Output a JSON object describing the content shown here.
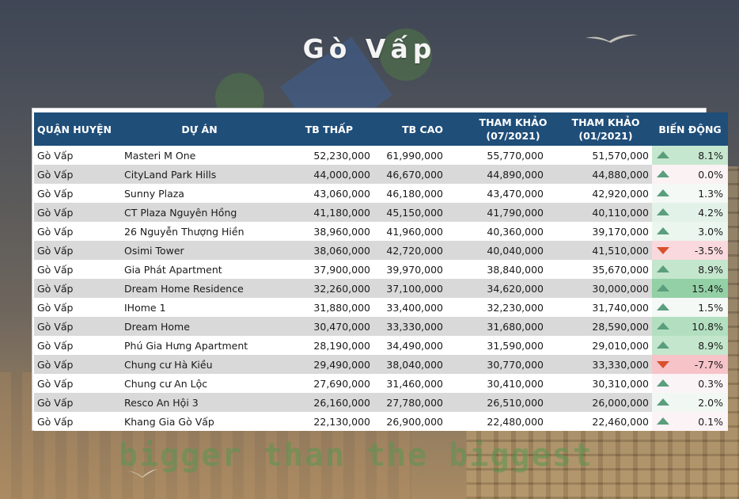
{
  "title": "Gò Vấp",
  "slogan": "bigger than the biggest",
  "watermark": "bigge",
  "colors": {
    "header_bg": "#1f4e79",
    "header_text": "#ffffff",
    "row_alt": "#d9d9d9",
    "up_arrow": "#5a9e7d",
    "down_arrow": "#d9502e"
  },
  "table": {
    "headers": {
      "district": "QUẬN HUYỆN",
      "project": "DỰ ÁN",
      "tb_low": "TB THẤP",
      "tb_high": "TB CAO",
      "ref_07_line1": "THAM KHẢO",
      "ref_07_line2": "(07/2021)",
      "ref_01_line1": "THAM KHẢO",
      "ref_01_line2": "(01/2021)",
      "change": "BIẾN ĐỘNG"
    },
    "rows": [
      {
        "district": "Gò Vấp",
        "project": "Masteri M One",
        "tb_low": "52,230,000",
        "tb_high": "61,990,000",
        "ref_07": "55,770,000",
        "ref_01": "51,570,000",
        "direction": "up",
        "change": "8.1%",
        "change_bg": "#c6e7cf"
      },
      {
        "district": "Gò Vấp",
        "project": "CityLand Park Hills",
        "tb_low": "44,000,000",
        "tb_high": "46,670,000",
        "ref_07": "44,890,000",
        "ref_01": "44,880,000",
        "direction": "up",
        "change": "0.0%",
        "change_bg": "#fbf2f4"
      },
      {
        "district": "Gò Vấp",
        "project": "Sunny Plaza",
        "tb_low": "43,060,000",
        "tb_high": "46,180,000",
        "ref_07": "43,470,000",
        "ref_01": "42,920,000",
        "direction": "up",
        "change": "1.3%",
        "change_bg": "#f4f9f6"
      },
      {
        "district": "Gò Vấp",
        "project": "CT Plaza Nguyên Hồng",
        "tb_low": "41,180,000",
        "tb_high": "45,150,000",
        "ref_07": "41,790,000",
        "ref_01": "40,110,000",
        "direction": "up",
        "change": "4.2%",
        "change_bg": "#e3f2e8"
      },
      {
        "district": "Gò Vấp",
        "project": "26 Nguyễn Thượng Hiền",
        "tb_low": "38,960,000",
        "tb_high": "41,960,000",
        "ref_07": "40,360,000",
        "ref_01": "39,170,000",
        "direction": "up",
        "change": "3.0%",
        "change_bg": "#ebf6ee"
      },
      {
        "district": "Gò Vấp",
        "project": "Osimi Tower",
        "tb_low": "38,060,000",
        "tb_high": "42,720,000",
        "ref_07": "40,040,000",
        "ref_01": "41,510,000",
        "direction": "down",
        "change": "-3.5%",
        "change_bg": "#f9d9dd"
      },
      {
        "district": "Gò Vấp",
        "project": "Gia Phát Apartment",
        "tb_low": "37,900,000",
        "tb_high": "39,970,000",
        "ref_07": "38,840,000",
        "ref_01": "35,670,000",
        "direction": "up",
        "change": "8.9%",
        "change_bg": "#c4e6cd"
      },
      {
        "district": "Gò Vấp",
        "project": "Dream Home Residence",
        "tb_low": "32,260,000",
        "tb_high": "37,100,000",
        "ref_07": "34,620,000",
        "ref_01": "30,000,000",
        "direction": "up",
        "change": "15.4%",
        "change_bg": "#93d0a6"
      },
      {
        "district": "Gò Vấp",
        "project": "IHome 1",
        "tb_low": "31,880,000",
        "tb_high": "33,400,000",
        "ref_07": "32,230,000",
        "ref_01": "31,740,000",
        "direction": "up",
        "change": "1.5%",
        "change_bg": "#f4f9f6"
      },
      {
        "district": "Gò Vấp",
        "project": "Dream Home",
        "tb_low": "30,470,000",
        "tb_high": "33,330,000",
        "ref_07": "31,680,000",
        "ref_01": "28,590,000",
        "direction": "up",
        "change": "10.8%",
        "change_bg": "#b3dfc0"
      },
      {
        "district": "Gò Vấp",
        "project": "Phú Gia Hưng Apartment",
        "tb_low": "28,190,000",
        "tb_high": "34,490,000",
        "ref_07": "31,590,000",
        "ref_01": "29,010,000",
        "direction": "up",
        "change": "8.9%",
        "change_bg": "#c4e6cd"
      },
      {
        "district": "Gò Vấp",
        "project": "Chung cư Hà Kiều",
        "tb_low": "29,490,000",
        "tb_high": "38,040,000",
        "ref_07": "30,770,000",
        "ref_01": "33,330,000",
        "direction": "down",
        "change": "-7.7%",
        "change_bg": "#f6c3c8"
      },
      {
        "district": "Gò Vấp",
        "project": "Chung cư An Lộc",
        "tb_low": "27,690,000",
        "tb_high": "31,460,000",
        "ref_07": "30,410,000",
        "ref_01": "30,310,000",
        "direction": "up",
        "change": "0.3%",
        "change_bg": "#fbf4f6"
      },
      {
        "district": "Gò Vấp",
        "project": "Resco An Hội 3",
        "tb_low": "26,160,000",
        "tb_high": "27,780,000",
        "ref_07": "26,510,000",
        "ref_01": "26,000,000",
        "direction": "up",
        "change": "2.0%",
        "change_bg": "#f1f8f3"
      },
      {
        "district": "Gò Vấp",
        "project": "Khang Gia Gò Vấp",
        "tb_low": "22,130,000",
        "tb_high": "26,900,000",
        "ref_07": "22,480,000",
        "ref_01": "22,460,000",
        "direction": "up",
        "change": "0.1%",
        "change_bg": "#fbf3f5"
      }
    ]
  }
}
